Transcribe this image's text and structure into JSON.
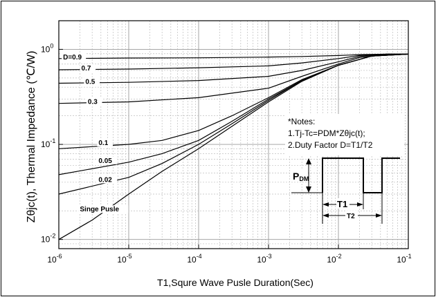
{
  "chart_data": {
    "type": "line",
    "x_scale": "log",
    "y_scale": "log",
    "xlim": [
      1e-06,
      0.1
    ],
    "ylim": [
      0.008,
      2
    ],
    "xlabel": "T1,Squre Wave Pusle Duration(Sec)",
    "ylabel": "Zθjc(t), Thermal Impedance (℃/W)",
    "x_ticks": [
      {
        "value": 1e-06,
        "base": "10",
        "exp": "-6"
      },
      {
        "value": 1e-05,
        "base": "10",
        "exp": "-5"
      },
      {
        "value": 0.0001,
        "base": "10",
        "exp": "-4"
      },
      {
        "value": 0.001,
        "base": "10",
        "exp": "-3"
      },
      {
        "value": 0.01,
        "base": "10",
        "exp": "-2"
      },
      {
        "value": 0.1,
        "base": "10",
        "exp": "-1"
      }
    ],
    "y_ticks": [
      {
        "value": 0.01,
        "base": "10",
        "exp": "-2"
      },
      {
        "value": 0.1,
        "base": "10",
        "exp": "-1"
      },
      {
        "value": 1,
        "base": "10",
        "exp": "0"
      }
    ],
    "grid": true,
    "series": [
      {
        "name": "D=0.9",
        "x": [
          1e-06,
          1e-05,
          0.0001,
          0.001,
          0.003,
          0.01,
          0.02,
          0.05,
          0.1
        ],
        "y": [
          0.8,
          0.81,
          0.815,
          0.83,
          0.84,
          0.86,
          0.88,
          0.89,
          0.89
        ]
      },
      {
        "name": "0.7",
        "x": [
          1e-06,
          1e-05,
          0.0001,
          0.001,
          0.003,
          0.01,
          0.02,
          0.05,
          0.1
        ],
        "y": [
          0.61,
          0.62,
          0.64,
          0.67,
          0.72,
          0.8,
          0.86,
          0.89,
          0.89
        ]
      },
      {
        "name": "0.5",
        "x": [
          1e-06,
          1e-05,
          0.0001,
          0.001,
          0.003,
          0.01,
          0.02,
          0.05,
          0.1
        ],
        "y": [
          0.44,
          0.45,
          0.47,
          0.52,
          0.6,
          0.74,
          0.84,
          0.89,
          0.89
        ]
      },
      {
        "name": "0.3",
        "x": [
          1e-06,
          1e-05,
          0.0001,
          0.001,
          0.003,
          0.01,
          0.02,
          0.05,
          0.1
        ],
        "y": [
          0.27,
          0.28,
          0.31,
          0.39,
          0.52,
          0.7,
          0.82,
          0.88,
          0.89
        ]
      },
      {
        "name": "0.1",
        "x": [
          1e-06,
          1e-05,
          3e-05,
          0.0001,
          0.0003,
          0.001,
          0.003,
          0.01,
          0.03,
          0.1
        ],
        "y": [
          0.09,
          0.1,
          0.11,
          0.14,
          0.2,
          0.31,
          0.48,
          0.68,
          0.85,
          0.89
        ]
      },
      {
        "name": "0.05",
        "x": [
          1e-06,
          1e-05,
          3e-05,
          0.0001,
          0.0003,
          0.001,
          0.003,
          0.01,
          0.03,
          0.1
        ],
        "y": [
          0.048,
          0.065,
          0.08,
          0.11,
          0.175,
          0.3,
          0.47,
          0.68,
          0.85,
          0.89
        ]
      },
      {
        "name": "0.02",
        "x": [
          1e-06,
          1e-05,
          3e-05,
          0.0001,
          0.0003,
          0.001,
          0.003,
          0.01,
          0.03,
          0.1
        ],
        "y": [
          0.03,
          0.045,
          0.063,
          0.1,
          0.165,
          0.29,
          0.47,
          0.68,
          0.85,
          0.89
        ]
      },
      {
        "name": "Singe Pusle",
        "x": [
          1e-06,
          3e-06,
          1e-05,
          3e-05,
          0.0001,
          0.0003,
          0.001,
          0.003,
          0.01,
          0.03,
          0.1
        ],
        "y": [
          0.01,
          0.016,
          0.03,
          0.052,
          0.09,
          0.155,
          0.28,
          0.46,
          0.68,
          0.85,
          0.89
        ]
      }
    ],
    "notes": {
      "title": "*Notes:",
      "line1": "1.Tj-Tc=PDM*Zθjc(t);",
      "line2": "2.Duty Factor D=T1/T2",
      "pdm_label": "PDM",
      "t1_label": "T1",
      "t2_label": "T2"
    }
  }
}
